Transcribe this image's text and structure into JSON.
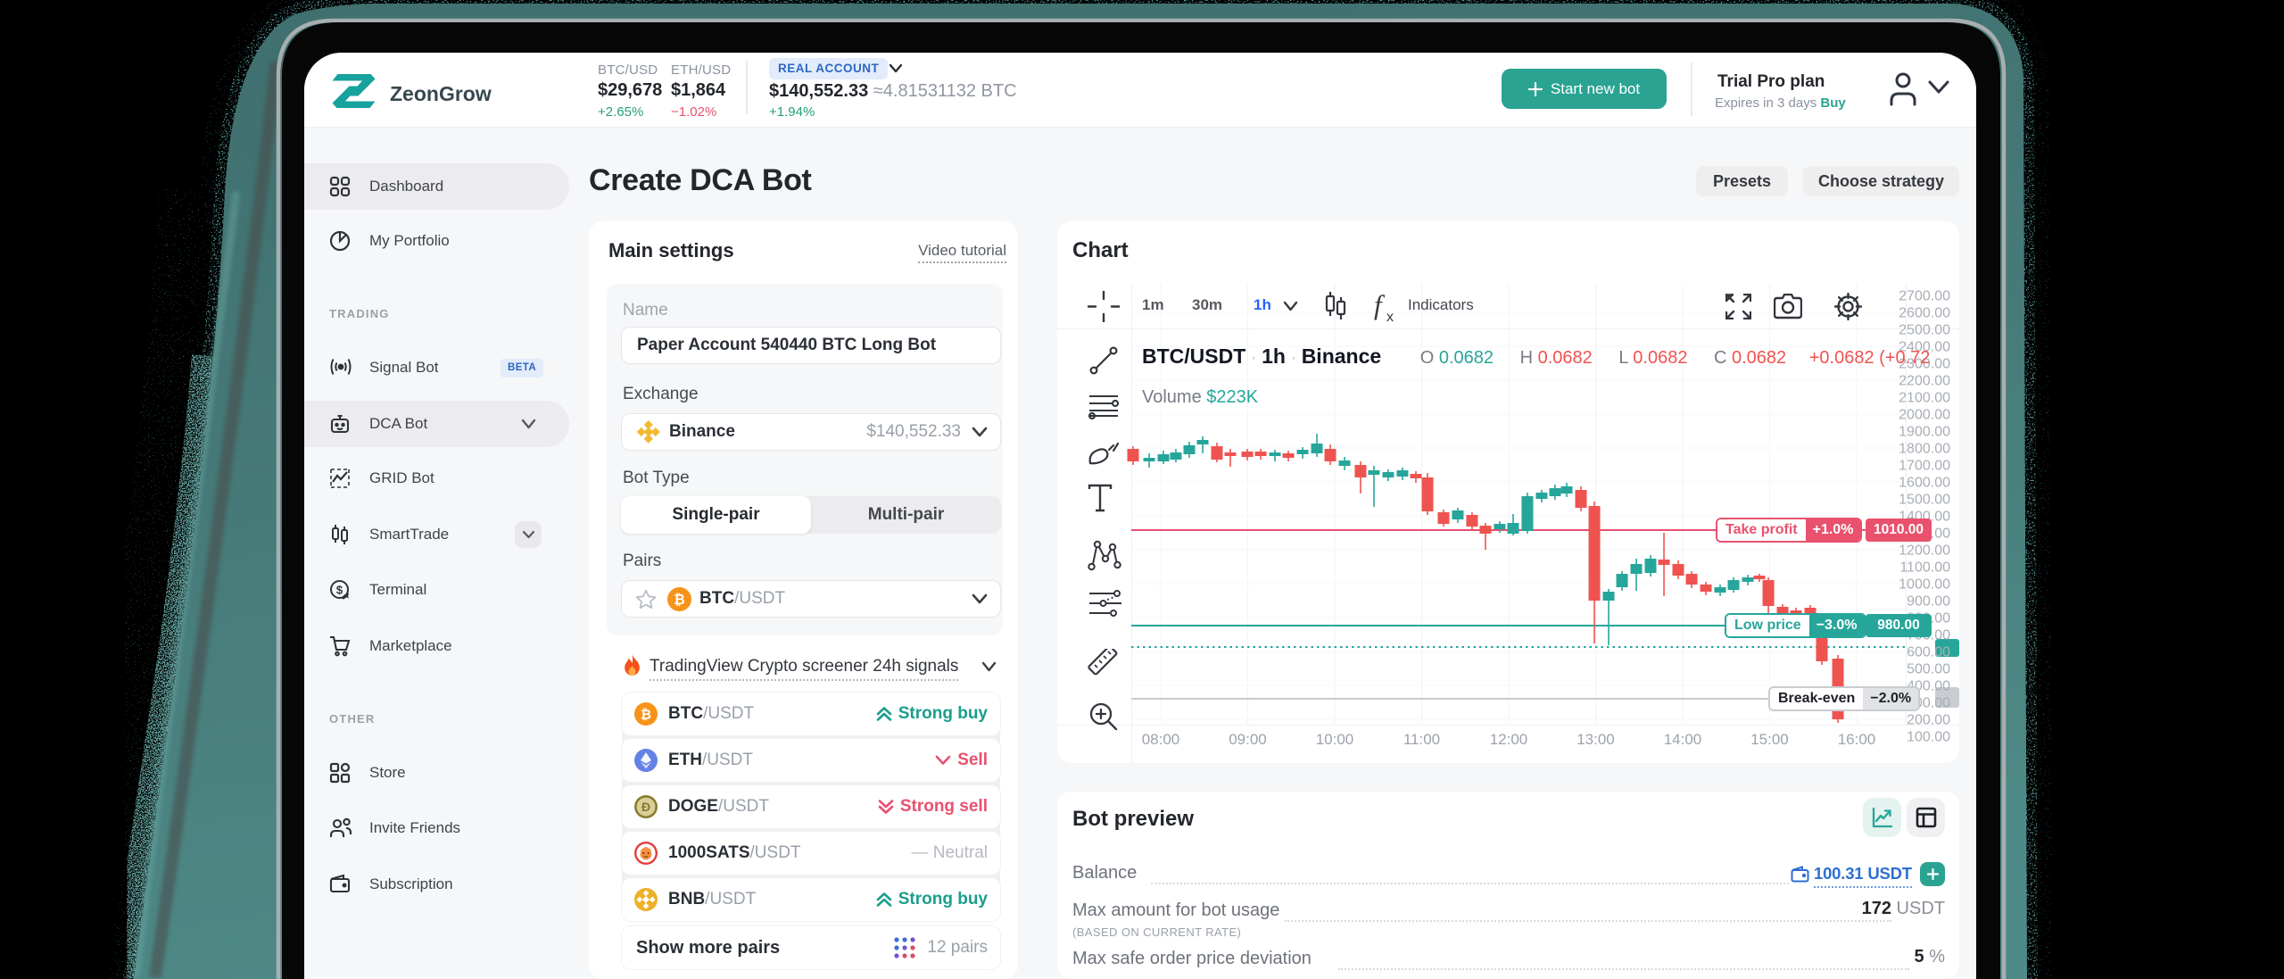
{
  "device": {
    "background": "#000000",
    "edge_teal": "#4a8381",
    "silver": "#b7bcbf",
    "bezel": "#070708"
  },
  "header": {
    "logo_text": "ZeonGrow",
    "tickers": [
      {
        "pair": "BTC/USD",
        "price": "$29,678",
        "change": "+2.65%",
        "dir": "up"
      },
      {
        "pair": "ETH/USD",
        "price": "$1,864",
        "change": "−1.02%",
        "dir": "down"
      }
    ],
    "account": {
      "badge": "REAL ACCOUNT",
      "value": "$140,552.33",
      "approx": "≈4.81531132 BTC",
      "change": "+1.94%"
    },
    "start_button": "Start new bot",
    "plan": {
      "title": "Trial Pro plan",
      "expires": "Expires in 3 days",
      "buy": "Buy"
    }
  },
  "sidebar": {
    "items": [
      {
        "label": "Dashboard",
        "icon": "dashboard",
        "type": "item",
        "active": true
      },
      {
        "label": "My Portfolio",
        "icon": "portfolio",
        "type": "item"
      },
      {
        "label": "TRADING",
        "type": "section"
      },
      {
        "label": "Signal Bot",
        "icon": "signal",
        "type": "item",
        "badge": "BETA"
      },
      {
        "label": "DCA Bot",
        "icon": "robot",
        "type": "item",
        "active": true,
        "chevron": "plain"
      },
      {
        "label": "GRID Bot",
        "icon": "gridbot",
        "type": "item"
      },
      {
        "label": "SmartTrade",
        "icon": "smarttrade",
        "type": "item",
        "chevron": "boxed"
      },
      {
        "label": "Terminal",
        "icon": "terminal",
        "type": "item"
      },
      {
        "label": "Marketplace",
        "icon": "cart",
        "type": "item"
      },
      {
        "label": "OTHER",
        "type": "section"
      },
      {
        "label": "Store",
        "icon": "store",
        "type": "item"
      },
      {
        "label": "Invite Friends",
        "icon": "invite",
        "type": "item"
      },
      {
        "label": "Subscription",
        "icon": "wallet",
        "type": "item"
      }
    ]
  },
  "page": {
    "title": "Create DCA Bot",
    "presets": "Presets",
    "choose_strategy": "Choose strategy"
  },
  "main_settings": {
    "title": "Main settings",
    "video_tutorial": "Video tutorial",
    "name_label": "Name",
    "name_value": "Paper Account 540440 BTC Long Bot",
    "exchange_label": "Exchange",
    "exchange_name": "Binance",
    "exchange_value": "$140,552.33",
    "bot_type_label": "Bot Type",
    "single_pair": "Single-pair",
    "multi_pair": "Multi-pair",
    "pairs_label": "Pairs",
    "pair": {
      "base": "BTC",
      "quote": "/USDT"
    },
    "screener": {
      "title": "TradingView Crypto screener 24h signals",
      "items": [
        {
          "base": "BTC",
          "quote": "/USDT",
          "coin": "btc",
          "signal": "Strong buy",
          "type": "strongbuy"
        },
        {
          "base": "ETH",
          "quote": "/USDT",
          "coin": "eth",
          "signal": "Sell",
          "type": "sell"
        },
        {
          "base": "DOGE",
          "quote": "/USDT",
          "coin": "doge",
          "signal": "Strong sell",
          "type": "strongsell"
        },
        {
          "base": "1000SATS",
          "quote": "/USDT",
          "coin": "sats",
          "signal": "Neutral",
          "type": "neutral"
        },
        {
          "base": "BNB",
          "quote": "/USDT",
          "coin": "bnb",
          "signal": "Strong buy",
          "type": "strongbuy"
        }
      ],
      "show_more": "Show more pairs",
      "pairs_count": "12 pairs"
    }
  },
  "chart": {
    "title": "Chart",
    "timeframes": [
      "1m",
      "30m",
      "1h"
    ],
    "active_timeframe": "1h",
    "indicators_label": "Indicators",
    "symbol": "BTC/USDT",
    "interval": "1h",
    "exchange": "Binance",
    "ohlc": {
      "o": "0.0682",
      "h": "0.0682",
      "l": "0.0682",
      "c": "0.0682",
      "change": "+0.0682 (+0.72"
    },
    "volume_label": "Volume",
    "volume_value": "$223K"
  },
  "chart_data": {
    "type": "candlestick",
    "title": "BTC/USDT 1h Binance",
    "xlabel": "time",
    "ylabel": "price",
    "x_ticks": [
      "08:00",
      "09:00",
      "10:00",
      "11:00",
      "12:00",
      "13:00",
      "14:00",
      "15:00",
      "16:00"
    ],
    "y_ticks": [
      2700,
      2600,
      2500,
      2400,
      2300,
      2200,
      2100,
      2000,
      1900,
      1800,
      1700,
      1600,
      1500,
      1400,
      1300,
      1200,
      1100,
      1000,
      900,
      800,
      700,
      600,
      500,
      400,
      300,
      200,
      100
    ],
    "ylim": [
      100,
      2700
    ],
    "xlim_hours": [
      7.55,
      16.7
    ],
    "grid": true,
    "up_color": "#26a69a",
    "down_color": "#ef5350",
    "candles": [
      {
        "t": 7.682,
        "o": 1794.7,
        "h": 1810.5,
        "l": 1700.0,
        "c": 1721.1
      },
      {
        "t": 7.867,
        "o": 1721.1,
        "h": 1768.4,
        "l": 1684.2,
        "c": 1742.1
      },
      {
        "t": 8.031,
        "o": 1721.1,
        "h": 1784.2,
        "l": 1705.3,
        "c": 1763.2
      },
      {
        "t": 8.174,
        "o": 1731.6,
        "h": 1794.7,
        "l": 1715.8,
        "c": 1773.7
      },
      {
        "t": 8.328,
        "o": 1763.2,
        "h": 1836.8,
        "l": 1742.1,
        "c": 1815.8
      },
      {
        "t": 8.482,
        "o": 1821.1,
        "h": 1868.4,
        "l": 1768.4,
        "c": 1847.4
      },
      {
        "t": 8.646,
        "o": 1810.5,
        "h": 1831.6,
        "l": 1715.8,
        "c": 1731.6
      },
      {
        "t": 8.8,
        "o": 1773.7,
        "h": 1794.7,
        "l": 1689.5,
        "c": 1752.6
      },
      {
        "t": 8.995,
        "o": 1778.9,
        "h": 1794.7,
        "l": 1726.3,
        "c": 1747.4
      },
      {
        "t": 9.149,
        "o": 1778.9,
        "h": 1794.7,
        "l": 1731.6,
        "c": 1752.6
      },
      {
        "t": 9.313,
        "o": 1752.6,
        "h": 1789.5,
        "l": 1721.1,
        "c": 1773.7
      },
      {
        "t": 9.467,
        "o": 1768.4,
        "h": 1784.2,
        "l": 1721.1,
        "c": 1742.1
      },
      {
        "t": 9.631,
        "o": 1763.2,
        "h": 1805.3,
        "l": 1736.8,
        "c": 1789.5
      },
      {
        "t": 9.795,
        "o": 1768.4,
        "h": 1884.2,
        "l": 1747.4,
        "c": 1826.3
      },
      {
        "t": 9.949,
        "o": 1794.7,
        "h": 1821.1,
        "l": 1700.0,
        "c": 1721.1
      },
      {
        "t": 10.113,
        "o": 1694.7,
        "h": 1747.4,
        "l": 1668.4,
        "c": 1726.3
      },
      {
        "t": 10.297,
        "o": 1700.0,
        "h": 1721.1,
        "l": 1531.6,
        "c": 1626.3
      },
      {
        "t": 10.451,
        "o": 1642.1,
        "h": 1694.7,
        "l": 1452.6,
        "c": 1668.4
      },
      {
        "t": 10.615,
        "o": 1626.3,
        "h": 1673.7,
        "l": 1605.3,
        "c": 1657.9
      },
      {
        "t": 10.779,
        "o": 1631.6,
        "h": 1684.2,
        "l": 1610.5,
        "c": 1668.4
      },
      {
        "t": 10.933,
        "o": 1647.4,
        "h": 1663.2,
        "l": 1594.7,
        "c": 1621.1
      },
      {
        "t": 11.067,
        "o": 1626.3,
        "h": 1652.6,
        "l": 1405.3,
        "c": 1426.3
      },
      {
        "t": 11.251,
        "o": 1421.1,
        "h": 1436.8,
        "l": 1336.8,
        "c": 1352.6
      },
      {
        "t": 11.415,
        "o": 1378.9,
        "h": 1447.4,
        "l": 1357.9,
        "c": 1431.6
      },
      {
        "t": 11.579,
        "o": 1405.3,
        "h": 1421.1,
        "l": 1315.8,
        "c": 1336.8
      },
      {
        "t": 11.733,
        "o": 1342.1,
        "h": 1357.9,
        "l": 1200.0,
        "c": 1294.7
      },
      {
        "t": 11.897,
        "o": 1321.1,
        "h": 1368.4,
        "l": 1300.0,
        "c": 1352.6
      },
      {
        "t": 12.051,
        "o": 1294.7,
        "h": 1410.5,
        "l": 1284.2,
        "c": 1357.9
      },
      {
        "t": 12.215,
        "o": 1310.5,
        "h": 1536.8,
        "l": 1294.7,
        "c": 1515.8
      },
      {
        "t": 12.379,
        "o": 1500.0,
        "h": 1552.6,
        "l": 1478.9,
        "c": 1536.8
      },
      {
        "t": 12.533,
        "o": 1515.8,
        "h": 1584.2,
        "l": 1494.7,
        "c": 1563.2
      },
      {
        "t": 12.667,
        "o": 1531.6,
        "h": 1594.7,
        "l": 1510.5,
        "c": 1573.7
      },
      {
        "t": 12.831,
        "o": 1552.6,
        "h": 1573.7,
        "l": 1426.3,
        "c": 1447.4
      },
      {
        "t": 12.985,
        "o": 1457.9,
        "h": 1484.2,
        "l": 647.4,
        "c": 900.0
      },
      {
        "t": 13.149,
        "o": 900.0,
        "h": 968.4,
        "l": 636.8,
        "c": 952.6
      },
      {
        "t": 13.303,
        "o": 978.9,
        "h": 1073.7,
        "l": 957.9,
        "c": 1057.9
      },
      {
        "t": 13.467,
        "o": 1057.9,
        "h": 1147.4,
        "l": 957.9,
        "c": 1115.8
      },
      {
        "t": 13.631,
        "o": 1063.2,
        "h": 1168.4,
        "l": 1042.1,
        "c": 1147.4
      },
      {
        "t": 13.785,
        "o": 1142.1,
        "h": 1300.0,
        "l": 926.3,
        "c": 1110.5
      },
      {
        "t": 13.949,
        "o": 1115.8,
        "h": 1136.8,
        "l": 1026.3,
        "c": 1047.4
      },
      {
        "t": 14.103,
        "o": 1057.9,
        "h": 1073.7,
        "l": 973.7,
        "c": 994.7
      },
      {
        "t": 14.267,
        "o": 994.7,
        "h": 1010.5,
        "l": 931.6,
        "c": 952.6
      },
      {
        "t": 14.431,
        "o": 947.4,
        "h": 994.7,
        "l": 926.3,
        "c": 978.9
      },
      {
        "t": 14.585,
        "o": 963.2,
        "h": 1036.8,
        "l": 947.4,
        "c": 1021.1
      },
      {
        "t": 14.749,
        "o": 1010.5,
        "h": 1052.6,
        "l": 989.5,
        "c": 1036.8
      },
      {
        "t": 14.882,
        "o": 1047.4,
        "h": 1057.9,
        "l": 1010.5,
        "c": 1026.3
      },
      {
        "t": 14.985,
        "o": 1021.1,
        "h": 1036.8,
        "l": 821.1,
        "c": 868.4
      },
      {
        "t": 15.149,
        "o": 863.2,
        "h": 878.9,
        "l": 805.3,
        "c": 826.3
      },
      {
        "t": 15.303,
        "o": 842.1,
        "h": 857.9,
        "l": 800.0,
        "c": 821.1
      },
      {
        "t": 15.467,
        "o": 857.9,
        "h": 873.7,
        "l": 789.5,
        "c": 815.8
      },
      {
        "t": 15.6,
        "o": 684.2,
        "h": 789.5,
        "l": 521.1,
        "c": 542.1
      },
      {
        "t": 15.785,
        "o": 557.9,
        "h": 578.9,
        "l": 178.9,
        "c": 200.0
      }
    ],
    "levels": [
      {
        "name": "Take profit",
        "pct": "+1.0%",
        "price_label": "1010.00",
        "level": 1315.8,
        "style": "solid",
        "color": "#e9516d"
      },
      {
        "name": "Low price",
        "pct": "−3.0%",
        "price_label": "980.00",
        "level": 752.6,
        "style": "solid",
        "color": "#26a69a"
      },
      {
        "name": "",
        "pct": "",
        "price_label": "",
        "level": 626.3,
        "style": "dotted",
        "color": "#26a69a"
      },
      {
        "name": "Break-even",
        "pct": "−2.0%",
        "price_label": "",
        "level": 321.0,
        "style": "solid",
        "color": "#c7cad0"
      }
    ]
  },
  "bot_preview": {
    "title": "Bot preview",
    "rows": [
      {
        "label": "Balance",
        "sub": "",
        "value_main": "100.31 USDT",
        "value_unit": "",
        "kind": "balance"
      },
      {
        "label": "Max amount for bot usage",
        "sub": "(BASED ON CURRENT RATE)",
        "value_main": "172",
        "value_unit": "USDT",
        "kind": "plain"
      },
      {
        "label": "Max safe order price deviation",
        "sub": "",
        "value_main": "5",
        "value_unit": "%",
        "kind": "plain"
      }
    ]
  }
}
